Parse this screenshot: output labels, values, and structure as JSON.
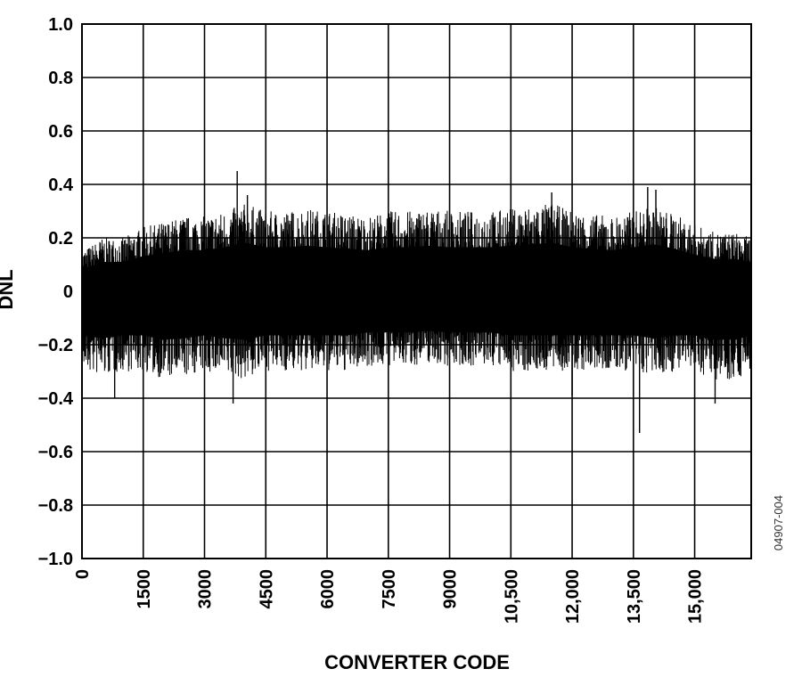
{
  "chart_data": {
    "type": "line",
    "title": "",
    "xlabel": "CONVERTER CODE",
    "ylabel": "DNL",
    "xlim": [
      0,
      16384
    ],
    "ylim": [
      -1.0,
      1.0
    ],
    "grid": true,
    "x_ticks": [
      0,
      1500,
      3000,
      4500,
      6000,
      7500,
      9000,
      10500,
      12000,
      13500,
      15000
    ],
    "x_tick_labels": [
      "0",
      "1500",
      "3000",
      "4500",
      "6000",
      "7500",
      "9000",
      "10,500",
      "12,000",
      "13,500",
      "15,000"
    ],
    "y_ticks": [
      1.0,
      0.8,
      0.6,
      0.4,
      0.2,
      0,
      -0.2,
      -0.4,
      -0.6,
      -0.8,
      -1.0
    ],
    "y_tick_labels": [
      "1.0",
      "0.8",
      "0.6",
      "0.4",
      "0.2",
      "0",
      "−0.2",
      "−0.4",
      "−0.6",
      "−0.8",
      "−1.0"
    ],
    "series": [
      {
        "color": "#000000",
        "summary": "DNL noise across all codes, mostly within about ±0.25 LSB",
        "envelope_x": [
          0,
          500,
          1000,
          1500,
          2000,
          2500,
          3000,
          3500,
          4000,
          4500,
          5000,
          5500,
          6000,
          6500,
          7000,
          7500,
          8000,
          8500,
          9000,
          9500,
          10000,
          10500,
          11000,
          11500,
          12000,
          12500,
          13000,
          13500,
          14000,
          14500,
          15000,
          15500,
          16000,
          16384
        ],
        "envelope_upper": [
          0.15,
          0.2,
          0.2,
          0.24,
          0.26,
          0.28,
          0.28,
          0.3,
          0.33,
          0.3,
          0.3,
          0.31,
          0.3,
          0.29,
          0.28,
          0.3,
          0.3,
          0.31,
          0.3,
          0.3,
          0.3,
          0.31,
          0.32,
          0.33,
          0.3,
          0.29,
          0.28,
          0.3,
          0.32,
          0.29,
          0.25,
          0.22,
          0.22,
          0.2
        ],
        "envelope_lower": [
          -0.3,
          -0.32,
          -0.3,
          -0.3,
          -0.33,
          -0.32,
          -0.3,
          -0.32,
          -0.33,
          -0.3,
          -0.3,
          -0.3,
          -0.3,
          -0.3,
          -0.28,
          -0.28,
          -0.28,
          -0.27,
          -0.28,
          -0.28,
          -0.28,
          -0.3,
          -0.3,
          -0.3,
          -0.3,
          -0.3,
          -0.3,
          -0.3,
          -0.32,
          -0.3,
          -0.3,
          -0.33,
          -0.33,
          -0.3
        ],
        "peaks": [
          {
            "x": 3800,
            "y": 0.45
          },
          {
            "x": 4050,
            "y": 0.36
          },
          {
            "x": 11500,
            "y": 0.37
          },
          {
            "x": 13850,
            "y": 0.39
          },
          {
            "x": 14050,
            "y": 0.38
          },
          {
            "x": 3700,
            "y": -0.42
          },
          {
            "x": 800,
            "y": -0.4
          },
          {
            "x": 12000,
            "y": -0.39
          },
          {
            "x": 13650,
            "y": -0.53
          },
          {
            "x": 15500,
            "y": -0.42
          }
        ]
      }
    ]
  },
  "figure_id": "04907-004"
}
